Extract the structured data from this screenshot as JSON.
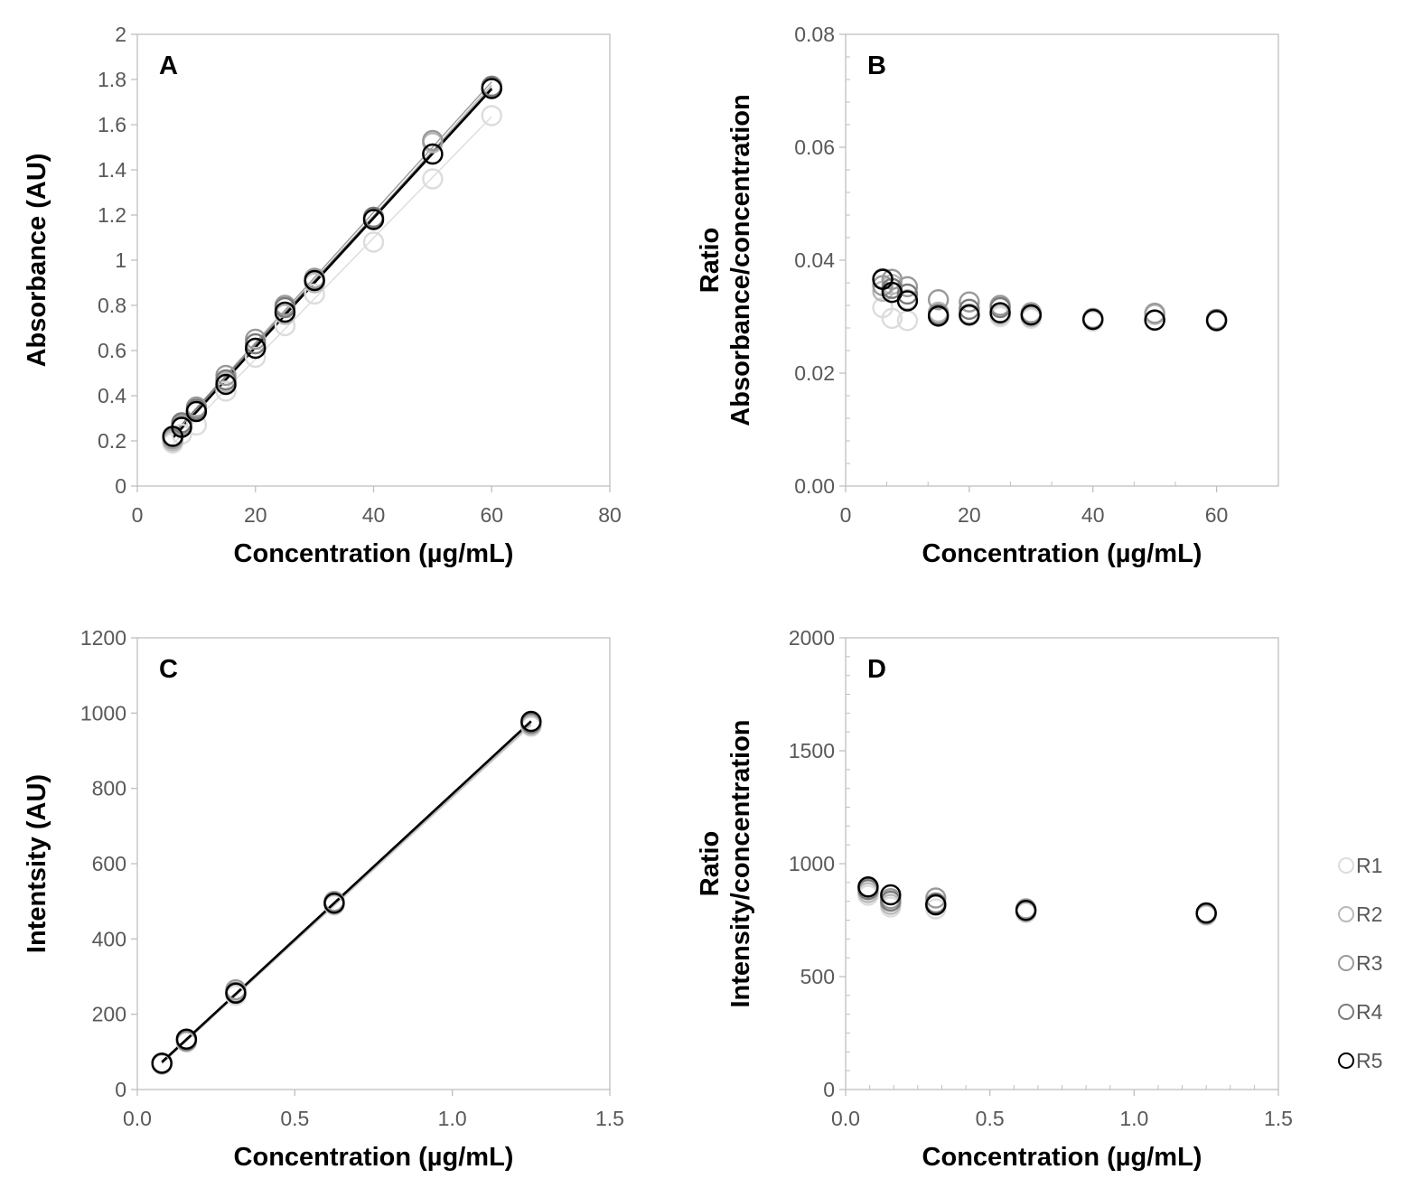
{
  "colors": {
    "R1": "#dcdcdc",
    "R2": "#b9b9b9",
    "R3": "#9a9a9a",
    "R4": "#7a7a7a",
    "R5": "#000000",
    "frame": "#bfbfbf",
    "tick_text": "#595959"
  },
  "legend": {
    "items": [
      "R1",
      "R2",
      "R3",
      "R4",
      "R5"
    ]
  },
  "chart_data": [
    {
      "id": "A",
      "type": "scatter",
      "panel_label": "A",
      "xlabel": "Concentration (µg/mL)",
      "ylabel": [
        "Absorbance (AU)"
      ],
      "xlim": [
        0,
        80
      ],
      "ylim": [
        0,
        2
      ],
      "xticks": [
        0,
        20,
        40,
        60,
        80
      ],
      "xtick_labels": [
        "0",
        "20",
        "40",
        "60",
        "80"
      ],
      "yticks": [
        0,
        0.2,
        0.4,
        0.6,
        0.8,
        1,
        1.2,
        1.4,
        1.6,
        1.8,
        2
      ],
      "ytick_labels": [
        "0",
        "0.2",
        "0.4",
        "0.6",
        "0.8",
        "1",
        "1.2",
        "1.4",
        "1.6",
        "1.8",
        "2"
      ],
      "trendlines": true,
      "x": [
        6,
        7.5,
        10,
        15,
        20,
        25,
        30,
        40,
        50,
        60
      ],
      "series": [
        {
          "name": "R1",
          "values": [
            0.19,
            0.23,
            0.27,
            0.42,
            0.57,
            0.71,
            0.85,
            1.08,
            1.36,
            1.64
          ]
        },
        {
          "name": "R2",
          "values": [
            0.2,
            0.26,
            0.33,
            0.46,
            0.61,
            0.76,
            0.9,
            1.18,
            1.52,
            1.76
          ]
        },
        {
          "name": "R3",
          "values": [
            0.21,
            0.27,
            0.35,
            0.49,
            0.65,
            0.8,
            0.92,
            1.19,
            1.53,
            1.77
          ]
        },
        {
          "name": "R4",
          "values": [
            0.22,
            0.28,
            0.34,
            0.47,
            0.63,
            0.79,
            0.91,
            1.19,
            1.47,
            1.77
          ]
        },
        {
          "name": "R5",
          "values": [
            0.22,
            0.26,
            0.33,
            0.45,
            0.61,
            0.77,
            0.91,
            1.18,
            1.47,
            1.76
          ]
        }
      ]
    },
    {
      "id": "B",
      "type": "scatter",
      "panel_label": "B",
      "xlabel": "Concentration (µg/mL)",
      "ylabel": [
        "Ratio",
        "Absorbance/concentration"
      ],
      "xlim": [
        0,
        70
      ],
      "ylim": [
        0,
        0.08
      ],
      "xticks": [
        0,
        20,
        40,
        60
      ],
      "xtick_labels": [
        "0",
        "20",
        "40",
        "60"
      ],
      "yticks": [
        0,
        0.02,
        0.04,
        0.06,
        0.08
      ],
      "ytick_labels": [
        "0.00",
        "0.02",
        "0.04",
        "0.06",
        "0.08"
      ],
      "trendlines": false,
      "x": [
        6,
        7.5,
        10,
        15,
        20,
        25,
        30,
        40,
        50,
        60
      ],
      "series": [
        {
          "name": "R1",
          "values": [
            0.0316,
            0.0297,
            0.0293,
            0.0301,
            0.0301,
            0.03,
            0.0297,
            0.0292,
            0.0293,
            0.0292
          ]
        },
        {
          "name": "R2",
          "values": [
            0.0345,
            0.0357,
            0.033,
            0.0308,
            0.0305,
            0.0304,
            0.03,
            0.0296,
            0.0304,
            0.0293
          ]
        },
        {
          "name": "R3",
          "values": [
            0.0355,
            0.0366,
            0.0353,
            0.033,
            0.0326,
            0.032,
            0.0307,
            0.0297,
            0.0306,
            0.0295
          ]
        },
        {
          "name": "R4",
          "values": [
            0.0367,
            0.035,
            0.034,
            0.0304,
            0.0313,
            0.0316,
            0.0303,
            0.0296,
            0.0294,
            0.0295
          ]
        },
        {
          "name": "R5",
          "values": [
            0.0366,
            0.0343,
            0.0328,
            0.0301,
            0.0303,
            0.0307,
            0.0303,
            0.0295,
            0.0294,
            0.0293
          ]
        }
      ]
    },
    {
      "id": "C",
      "type": "scatter",
      "panel_label": "C",
      "xlabel": "Concentration (µg/mL)",
      "ylabel": [
        "Intentsity (AU)"
      ],
      "xlim": [
        0,
        1.5
      ],
      "ylim": [
        0,
        1200
      ],
      "xticks": [
        0,
        0.5,
        1,
        1.5
      ],
      "xtick_labels": [
        "0.0",
        "0.5",
        "1.0",
        "1.5"
      ],
      "yticks": [
        0,
        200,
        400,
        600,
        800,
        1000,
        1200
      ],
      "ytick_labels": [
        "0",
        "200",
        "400",
        "600",
        "800",
        "1000",
        "1200"
      ],
      "trendlines": true,
      "x": [
        0.078,
        0.156,
        0.3125,
        0.625,
        1.25
      ],
      "series": [
        {
          "name": "R1",
          "values": [
            67,
            126,
            250,
            490,
            965
          ]
        },
        {
          "name": "R2",
          "values": [
            68,
            128,
            255,
            492,
            968
          ]
        },
        {
          "name": "R3",
          "values": [
            70,
            132,
            265,
            500,
            975
          ]
        },
        {
          "name": "R4",
          "values": [
            69,
            130,
            258,
            496,
            973
          ]
        },
        {
          "name": "R5",
          "values": [
            70,
            134,
            256,
            495,
            978
          ]
        }
      ]
    },
    {
      "id": "D",
      "type": "scatter",
      "panel_label": "D",
      "xlabel": "Concentration (µg/mL)",
      "ylabel": [
        "Ratio",
        "Intensity/concentration"
      ],
      "xlim": [
        0,
        1.5
      ],
      "ylim": [
        0,
        2000
      ],
      "xticks": [
        0,
        0.5,
        1,
        1.5
      ],
      "xtick_labels": [
        "0.0",
        "0.5",
        "1.0",
        "1.5"
      ],
      "yticks": [
        0,
        500,
        1000,
        1500,
        2000
      ],
      "ytick_labels": [
        "0",
        "500",
        "1000",
        "1500",
        "2000"
      ],
      "trendlines": false,
      "x": [
        0.078,
        0.156,
        0.3125,
        0.625,
        1.25
      ],
      "series": [
        {
          "name": "R1",
          "values": [
            860,
            808,
            800,
            784,
            772
          ]
        },
        {
          "name": "R2",
          "values": [
            872,
            820,
            816,
            786,
            774
          ]
        },
        {
          "name": "R3",
          "values": [
            895,
            845,
            848,
            800,
            780
          ]
        },
        {
          "name": "R4",
          "values": [
            885,
            834,
            826,
            793,
            778
          ]
        },
        {
          "name": "R5",
          "values": [
            897,
            862,
            818,
            793,
            782
          ]
        }
      ]
    }
  ]
}
